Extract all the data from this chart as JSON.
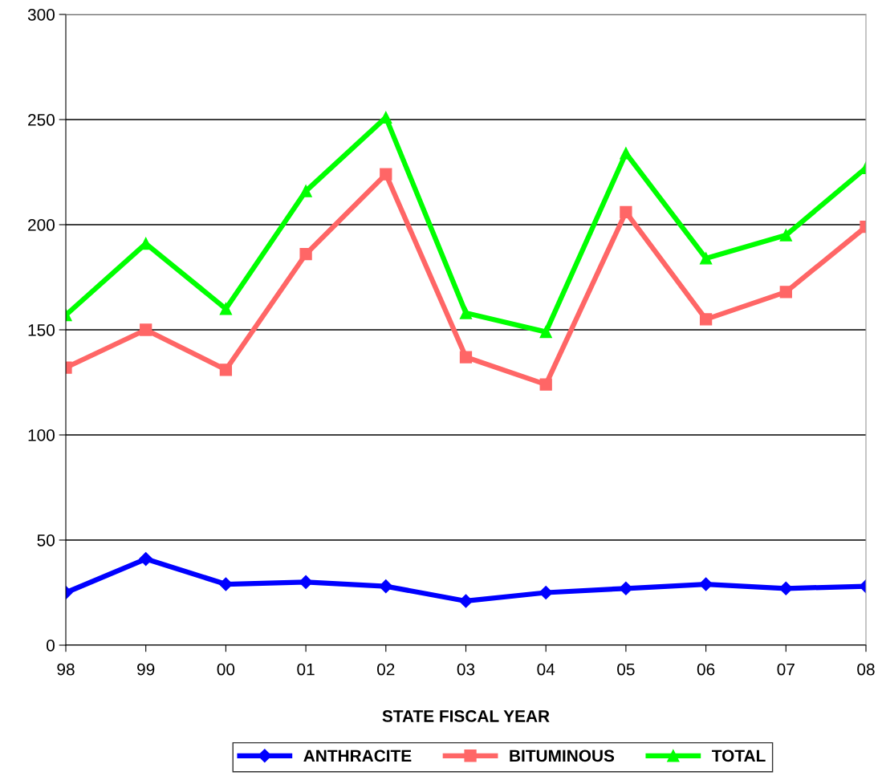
{
  "chart_data": {
    "type": "line",
    "xlabel": "STATE FISCAL YEAR",
    "categories": [
      "98",
      "99",
      "00",
      "01",
      "02",
      "03",
      "04",
      "05",
      "06",
      "07",
      "08"
    ],
    "series": [
      {
        "name": "ANTHRACITE",
        "color": "#0000ff",
        "marker": "diamond",
        "values": [
          25,
          41,
          29,
          30,
          28,
          21,
          25,
          27,
          29,
          27,
          28
        ]
      },
      {
        "name": "BITUMINOUS",
        "color": "#ff6666",
        "marker": "square",
        "values": [
          132,
          150,
          131,
          186,
          224,
          137,
          124,
          206,
          155,
          168,
          199
        ]
      },
      {
        "name": "TOTAL",
        "color": "#00ff00",
        "marker": "triangle",
        "values": [
          157,
          191,
          160,
          216,
          251,
          158,
          149,
          234,
          184,
          195,
          227
        ]
      }
    ],
    "ylim": [
      0,
      300
    ],
    "yticks": [
      0,
      50,
      100,
      150,
      200,
      250,
      300
    ],
    "grid": "y",
    "legend": "bottom",
    "line_style": "solid"
  }
}
